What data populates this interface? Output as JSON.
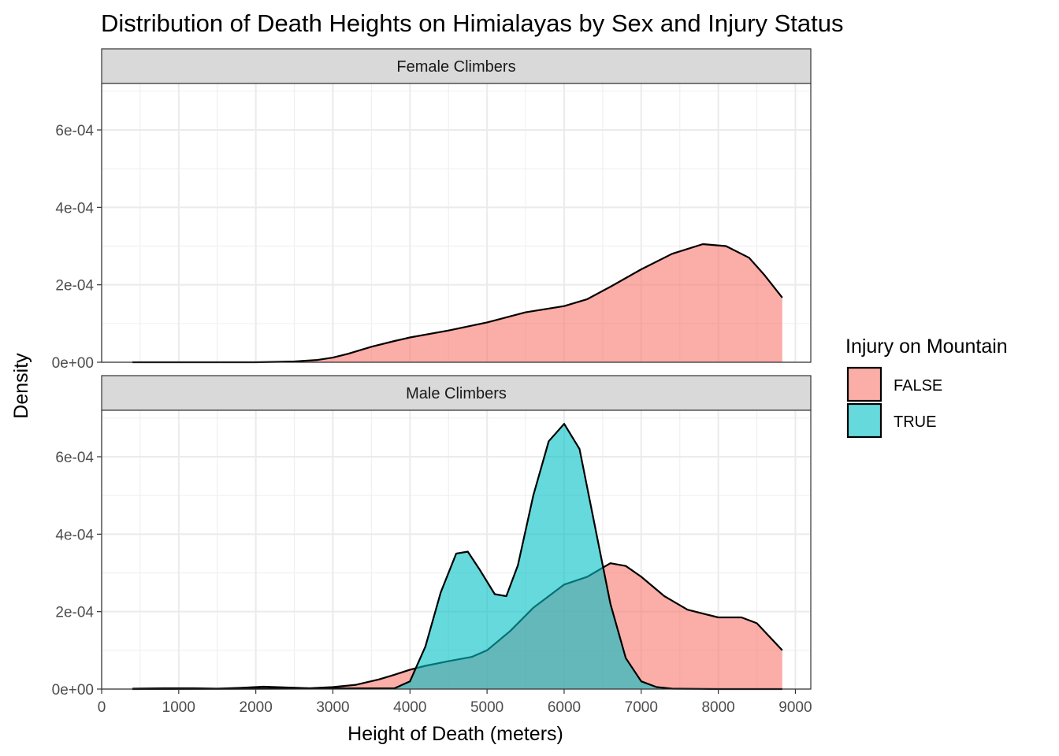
{
  "chart_data": {
    "type": "area",
    "title": "Distribution of Death Heights on Himialayas by Sex and Injury Status",
    "xlabel": "Height of Death (meters)",
    "ylabel": "Density",
    "xlim": [
      0,
      9200
    ],
    "ylim": [
      0,
      0.00072
    ],
    "x_ticks": [
      0,
      1000,
      2000,
      3000,
      4000,
      5000,
      6000,
      7000,
      8000,
      9000
    ],
    "x_tick_labels": [
      "0",
      "1000",
      "2000",
      "3000",
      "4000",
      "5000",
      "6000",
      "7000",
      "8000",
      "9000"
    ],
    "y_ticks": [
      0,
      0.0002,
      0.0004,
      0.0006
    ],
    "y_tick_labels": [
      "0e+00",
      "2e-04",
      "4e-04",
      "6e-04"
    ],
    "grid": true,
    "legend": {
      "title": "Injury on Mountain",
      "placement": "right",
      "entries": [
        {
          "label": "FALSE",
          "color": "#F8766D"
        },
        {
          "label": "TRUE",
          "color": "#00BFC4"
        }
      ]
    },
    "fill_alpha": 0.6,
    "panels": [
      {
        "label": "Female Climbers",
        "series": [
          {
            "name": "FALSE",
            "color": "#F8766D",
            "points": [
              [
                400,
                0
              ],
              [
                1000,
                0
              ],
              [
                2000,
                0
              ],
              [
                2500,
                2e-06
              ],
              [
                2800,
                6e-06
              ],
              [
                3000,
                1.2e-05
              ],
              [
                3200,
                2.2e-05
              ],
              [
                3500,
                4e-05
              ],
              [
                3800,
                5.5e-05
              ],
              [
                4000,
                6.4e-05
              ],
              [
                4500,
                8.2e-05
              ],
              [
                5000,
                0.000103
              ],
              [
                5500,
                0.000129
              ],
              [
                6000,
                0.000145
              ],
              [
                6300,
                0.000163
              ],
              [
                6600,
                0.000195
              ],
              [
                7000,
                0.00024
              ],
              [
                7400,
                0.00028
              ],
              [
                7800,
                0.000305
              ],
              [
                8100,
                0.0003
              ],
              [
                8400,
                0.00027
              ],
              [
                8600,
                0.000225
              ],
              [
                8830,
                0.000167
              ]
            ]
          }
        ]
      },
      {
        "label": "Male Climbers",
        "series": [
          {
            "name": "FALSE",
            "color": "#F8766D",
            "points": [
              [
                400,
                1e-06
              ],
              [
                800,
                2e-06
              ],
              [
                1200,
                2e-06
              ],
              [
                1500,
                1e-06
              ],
              [
                1800,
                3e-06
              ],
              [
                2100,
                6e-06
              ],
              [
                2400,
                4e-06
              ],
              [
                2700,
                2e-06
              ],
              [
                3000,
                5e-06
              ],
              [
                3300,
                1.1e-05
              ],
              [
                3600,
                2.5e-05
              ],
              [
                3800,
                3.7e-05
              ],
              [
                4000,
                5e-05
              ],
              [
                4200,
                6e-05
              ],
              [
                4500,
                7.2e-05
              ],
              [
                4800,
                8.3e-05
              ],
              [
                5000,
                0.0001
              ],
              [
                5300,
                0.00015
              ],
              [
                5600,
                0.00021
              ],
              [
                6000,
                0.00027
              ],
              [
                6300,
                0.00029
              ],
              [
                6600,
                0.000325
              ],
              [
                6800,
                0.000318
              ],
              [
                7000,
                0.00029
              ],
              [
                7300,
                0.00024
              ],
              [
                7600,
                0.000205
              ],
              [
                8000,
                0.000185
              ],
              [
                8300,
                0.000185
              ],
              [
                8500,
                0.00017
              ],
              [
                8830,
                0.0001
              ]
            ]
          },
          {
            "name": "TRUE",
            "color": "#00BFC4",
            "points": [
              [
                400,
                0
              ],
              [
                3800,
                2e-06
              ],
              [
                4000,
                2e-05
              ],
              [
                4200,
                0.00011
              ],
              [
                4400,
                0.00025
              ],
              [
                4600,
                0.00035
              ],
              [
                4750,
                0.000355
              ],
              [
                4900,
                0.00031
              ],
              [
                5100,
                0.000245
              ],
              [
                5250,
                0.00024
              ],
              [
                5400,
                0.00032
              ],
              [
                5600,
                0.0005
              ],
              [
                5800,
                0.00064
              ],
              [
                6000,
                0.000685
              ],
              [
                6200,
                0.00062
              ],
              [
                6400,
                0.00042
              ],
              [
                6600,
                0.00022
              ],
              [
                6800,
                8e-05
              ],
              [
                7000,
                2e-05
              ],
              [
                7200,
                5e-06
              ],
              [
                7400,
                1e-06
              ],
              [
                8000,
                0
              ],
              [
                8830,
                0
              ]
            ]
          }
        ]
      }
    ]
  }
}
